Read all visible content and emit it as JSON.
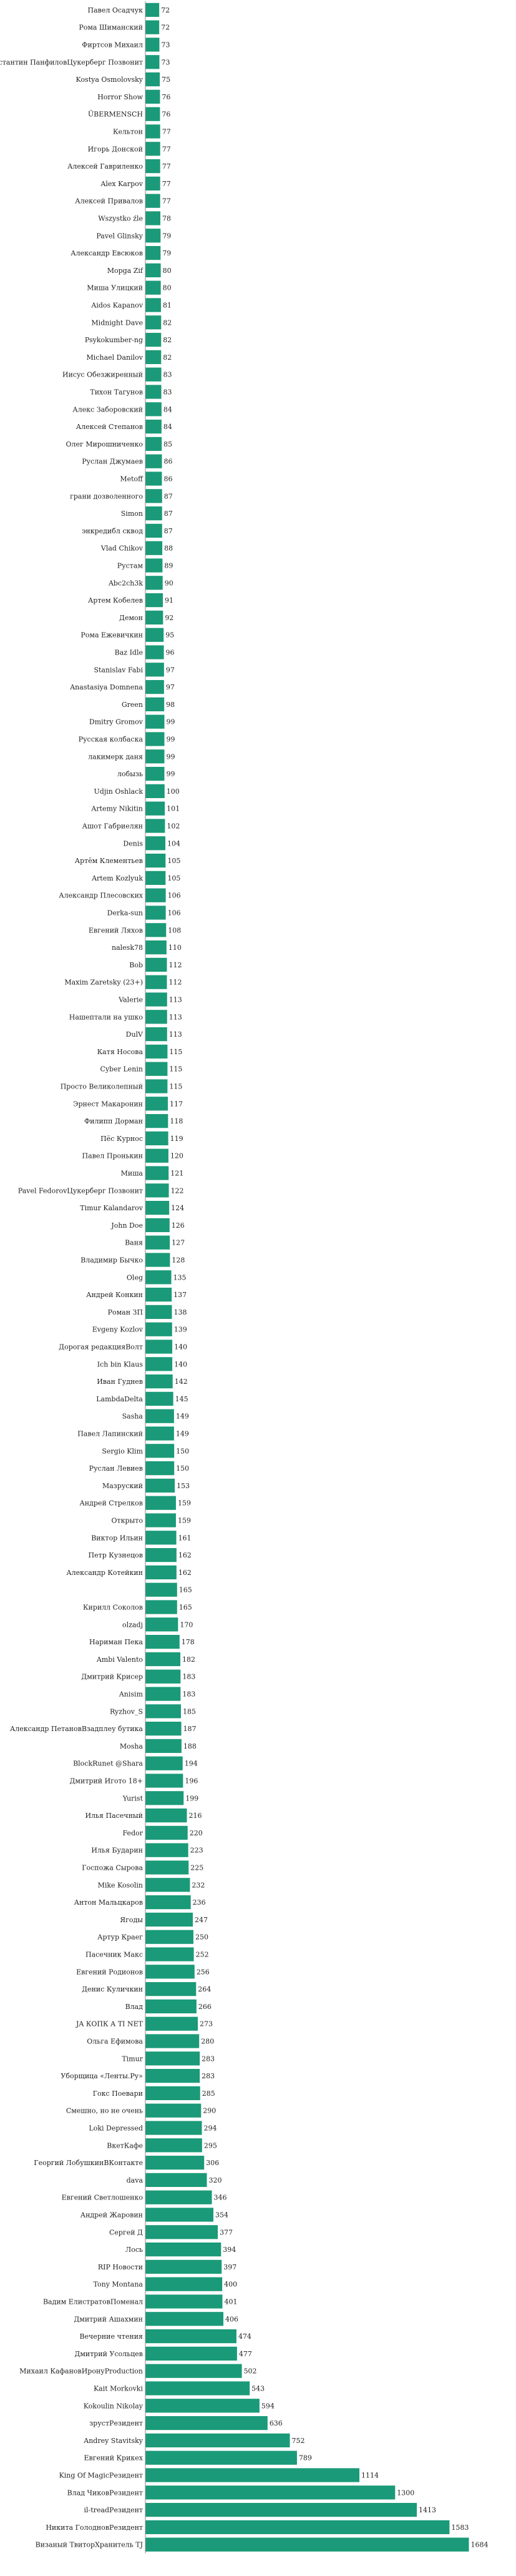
{
  "chart_data": {
    "type": "bar",
    "orientation": "horizontal",
    "grid": false,
    "legend": "none",
    "color": "#1a9a78",
    "xlim": [
      0,
      3700
    ],
    "categories": [
      "Павел Осадчук",
      "Рома Шиманский",
      "Фиртсов Михаил",
      "Константин ПанфиловЦукерберг Позвонит",
      "Kostya Osmolovsky",
      "Horror Show",
      "ÜBERMENSCH",
      "Кельтон",
      "Игорь Донской",
      "Алексей Гавриленко",
      "Alex Karpov",
      "Алексей Привалов",
      "Wszystko źle",
      "Pavel Glinsky",
      "Александр Евсюков",
      "Мopga Zif",
      "Миша Улицкий",
      "Aidos Kapanov",
      "Midnight Dave",
      "Psykokumber-ng",
      "Michael Danilov",
      "Иисус Обезжиренный",
      "Тихон Тагунов",
      "Алекс Заборовский",
      "Алексей Степанов",
      "Олег Мирошниченко",
      "Руслан Джумаев",
      "Metoff",
      "грани дозволенного",
      "Simon",
      "энкредибл сквод",
      "Vlad Chikov",
      "Рустам",
      "Abc2ch3k",
      "Артем Кобелев",
      "Демон",
      "Рома Ежевичкин",
      "Baz Idle",
      "Stanislav Fabi",
      "Anastasiya Domnena",
      "Green",
      "Dmitry Gromov",
      "Русская колбаска",
      "лакимерк даня",
      "лобызь",
      "Udjin Oshlack",
      "Artemy Nikitin",
      "Ашот Габриелян",
      "Denis",
      "Артём Клементьев",
      "Artem Kozlyuk",
      "Александр Плесовских",
      "Derka-sun",
      "Евгений Ляхов",
      "nalesk78",
      "Bob",
      "Maxim Zaretsky (23+)",
      "Valerie",
      "Нашептали на ушко",
      "DulV",
      "Катя Носова",
      "Cyber Lenin",
      "Просто Великолепный",
      "Эрнест Макаронин",
      "Филипп Дорман",
      "Пёс Курнос",
      "Павел Пронькин",
      "Миша",
      "Pavel FedorovЦукерберг Позвонит",
      "Timur Kalandarov",
      "John Doe",
      "Ваня",
      "Владимир Бычко",
      "Oleg",
      "Андрей Конкин",
      "Роман ЗП",
      "Evgeny Kozlov",
      "Дорогая редакцияВолт",
      "Ich bin Klaus",
      "Иван Гуднев",
      "LambdaDelta",
      "Sasha",
      "Павел Лапинский",
      "Sergio Klim",
      "Руслан Левиев",
      "Мазруский",
      "Андрей Стрелков",
      "Открыто",
      "Виктор Ильин",
      "Петр Кузнецов",
      "Александр Котейкин",
      "",
      "Кирилл Соколов",
      "olzadj",
      "Нариман Пека",
      "Ambi Valento",
      "Дмитрий Крисер",
      "Anisim",
      "Ryzhov_S",
      "Александр ПетановВзадплеу бутика",
      "Mosha",
      "BlockRunet @Shara",
      "Дмитрий Игото 18+",
      "Yurist",
      "Илья Пасечный",
      "Fedor",
      "Илья Бударин",
      "Госпожа Сырова",
      "Mike Kosolin",
      "Антон Мальцкаров",
      "Ягоды",
      "Артур Краег",
      "Пасечник Макс",
      "Евгений Родионов",
      "Денис Куличкин",
      "Влад",
      "JA КОПК А TI NET",
      "Ольга Ефимова",
      "Timur",
      "Уборщица «Ленты.Ру»",
      "Гокс Поевари",
      "Смешно, но не очень",
      "Loki Depressed",
      "ВкетКафе",
      "Георгий ЛобушкинВКонтакте",
      "dava",
      "Евгений Светлошенко",
      "Андрей Жаровин",
      "Сергей Д",
      "Лось",
      "RIP Новости",
      "Tony Montana",
      "Вадим ЕлистратовПоменал",
      "Дмитрий Ашахмин",
      "Вечерние чтения",
      "Дмитрий Усольцев",
      "Михаил КафановИронуProduction",
      "Kait Morkovki",
      "Kokoulin Nikolay",
      "зрустРезидент",
      "Andrey Stavitsky",
      "Евгений Крикех",
      "King Of MagicРезидент",
      "Влад ЧиковРезидент",
      "il-treadРезидент",
      "Никита ГолодновРезидент",
      "Визаный ТвиторХранитель TJ"
    ],
    "values": [
      72,
      72,
      73,
      73,
      75,
      76,
      76,
      77,
      77,
      77,
      77,
      77,
      78,
      79,
      79,
      80,
      80,
      81,
      82,
      82,
      82,
      83,
      83,
      84,
      84,
      85,
      86,
      86,
      87,
      87,
      87,
      88,
      89,
      90,
      91,
      92,
      95,
      96,
      97,
      97,
      98,
      99,
      99,
      99,
      99,
      100,
      101,
      102,
      104,
      105,
      105,
      106,
      106,
      108,
      110,
      112,
      112,
      113,
      113,
      113,
      115,
      115,
      115,
      117,
      118,
      119,
      120,
      121,
      122,
      124,
      126,
      127,
      128,
      135,
      137,
      138,
      139,
      140,
      140,
      142,
      145,
      149,
      149,
      150,
      150,
      153,
      159,
      159,
      161,
      162,
      162,
      165,
      165,
      170,
      178,
      182,
      183,
      183,
      185,
      187,
      188,
      194,
      196,
      199,
      216,
      220,
      223,
      225,
      232,
      236,
      247,
      250,
      252,
      256,
      264,
      266,
      273,
      280,
      283,
      283,
      285,
      290,
      294,
      295,
      306,
      320,
      346,
      354,
      377,
      394,
      397,
      400,
      401,
      406,
      474,
      477,
      502,
      543,
      594,
      636,
      752,
      789,
      1114,
      1300,
      1413,
      1583,
      1684
    ]
  }
}
